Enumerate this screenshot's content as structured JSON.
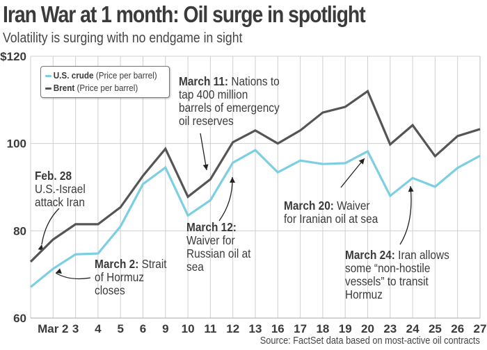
{
  "title": "Iran War at 1 month: Oil surge in spotlight",
  "subtitle": "Volatility is surging with no endgame in sight",
  "source": "Source: FactSet data based on most-active oil contracts",
  "chart_data": {
    "type": "line",
    "categories": [
      "",
      "Mar 2",
      "3",
      "4",
      "5",
      "6",
      "9",
      "10",
      "11",
      "12",
      "13",
      "16",
      "17",
      "18",
      "19",
      "20",
      "23",
      "24",
      "25",
      "26",
      "27"
    ],
    "ylim": [
      60,
      120
    ],
    "yticks": [
      60,
      80,
      100,
      120
    ],
    "ytick_labels": [
      "60",
      "80",
      "100",
      "$120"
    ],
    "grid": true,
    "legend_position": "top-left",
    "series": [
      {
        "name": "U.S. crude",
        "legend_note": "(Price per barrel)",
        "color": "#7ccfe2",
        "values": [
          67.1,
          71.3,
          74.6,
          74.8,
          81.0,
          90.7,
          94.5,
          83.5,
          87.0,
          95.6,
          98.5,
          93.4,
          96.1,
          95.3,
          95.5,
          98.2,
          88.0,
          92.1,
          90.1,
          94.4,
          97.2
        ]
      },
      {
        "name": "Brent",
        "legend_note": "(Price per barrel)",
        "color": "#555555",
        "values": [
          72.9,
          78.0,
          81.5,
          81.5,
          85.4,
          92.6,
          98.8,
          87.8,
          91.8,
          100.3,
          103.0,
          100.0,
          103.0,
          107.1,
          108.4,
          112.0,
          99.8,
          104.2,
          97.1,
          101.7,
          103.3
        ]
      }
    ],
    "annotations": [
      {
        "bold": "Feb. 28",
        "lines": [
          "U.S.-Israel",
          "attack Iran"
        ]
      },
      {
        "bold": "March 2:",
        "text": " Strait",
        "lines": [
          "of Hormuz",
          "closes"
        ]
      },
      {
        "bold": "March 11:",
        "text": " Nations to",
        "lines": [
          "tap 400 million",
          "barrels of emergency",
          "oil reserves"
        ]
      },
      {
        "bold": "March 12:",
        "lines": [
          "Waiver for",
          "Russian oil at",
          "sea"
        ]
      },
      {
        "bold": "March 20:",
        "text": " Waiver",
        "lines": [
          "for Iranian oil at sea"
        ]
      },
      {
        "bold": "March 24:",
        "text": " Iran allows",
        "lines": [
          "some “non-hostile",
          "vessels” to transit",
          "Hormuz"
        ]
      }
    ]
  }
}
